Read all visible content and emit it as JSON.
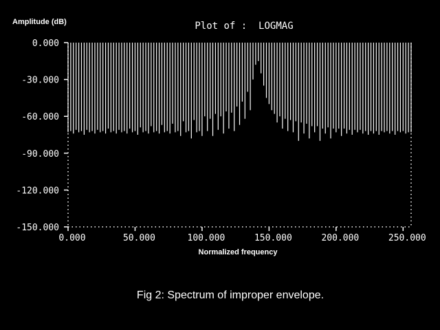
{
  "colors": {
    "background": "#000000",
    "foreground": "#ffffff"
  },
  "chart_data": {
    "type": "bar",
    "title": "Plot of :  LOGMAG",
    "ylabel": "Amplitude (dB)",
    "xlabel": "Normalized frequency",
    "caption": "Fig 2: Spectrum of improper envelope.",
    "xlim": [
      0,
      256
    ],
    "ylim": [
      -150,
      0
    ],
    "xticks": [
      {
        "value": 0,
        "label": "0.000"
      },
      {
        "value": 50,
        "label": "50.000"
      },
      {
        "value": 100,
        "label": "100.000"
      },
      {
        "value": 150,
        "label": "150.000"
      },
      {
        "value": 200,
        "label": "200.000"
      },
      {
        "value": 250,
        "label": "250.000"
      }
    ],
    "yticks": [
      {
        "value": 0,
        "label": "0.000"
      },
      {
        "value": -30,
        "label": "-30.000"
      },
      {
        "value": -60,
        "label": "-60.000"
      },
      {
        "value": -90,
        "label": "-90.000"
      },
      {
        "value": -120,
        "label": "-120.000"
      },
      {
        "value": -150,
        "label": "-150.000"
      }
    ],
    "grid": "dotted frame",
    "x_start": 0,
    "x_step": 2,
    "values": [
      -73,
      -72,
      -74,
      -71,
      -73,
      -72,
      -75,
      -71,
      -73,
      -72,
      -74,
      -71,
      -73,
      -72,
      -74,
      -70,
      -73,
      -72,
      -74,
      -71,
      -73,
      -72,
      -74,
      -70,
      -73,
      -72,
      -75,
      -69,
      -73,
      -72,
      -74,
      -68,
      -73,
      -72,
      -74,
      -67,
      -73,
      -72,
      -74,
      -66,
      -73,
      -72,
      -76,
      -64,
      -73,
      -72,
      -78,
      -63,
      -73,
      -72,
      -76,
      -60,
      -72,
      -62,
      -76,
      -58,
      -71,
      -60,
      -74,
      -56,
      -70,
      -57,
      -72,
      -52,
      -67,
      -48,
      -62,
      -40,
      -55,
      -30,
      -18,
      -15,
      -25,
      -35,
      -45,
      -50,
      -55,
      -58,
      -65,
      -60,
      -70,
      -62,
      -72,
      -63,
      -73,
      -64,
      -80,
      -65,
      -74,
      -66,
      -78,
      -68,
      -73,
      -68,
      -80,
      -70,
      -74,
      -69,
      -78,
      -70,
      -73,
      -70,
      -76,
      -70,
      -74,
      -71,
      -75,
      -71,
      -73,
      -71,
      -74,
      -72,
      -75,
      -72,
      -74,
      -72,
      -75,
      -72,
      -73,
      -72,
      -74,
      -72,
      -75,
      -72,
      -73,
      -72,
      -74,
      -73,
      -73
    ]
  }
}
